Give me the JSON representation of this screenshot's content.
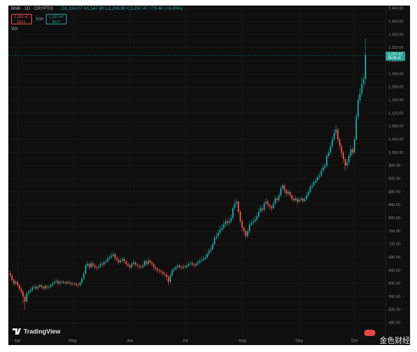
{
  "header": {
    "symbol": "BNB · 1D · CRYPTO",
    "ohlc": "O1,224.07 H1,347.60 L1,206.90 C1,297.47 +73.40 (+6.00%)",
    "sell_price": "1,297.47",
    "sell_label": "SELL",
    "spread": "0.00",
    "buy_price": "1,297.47",
    "buy_label": "BUY",
    "volume_label": "Vol"
  },
  "footer": {
    "brand": "TradingView",
    "watermark": "金色财经"
  },
  "chart_data": {
    "type": "candlestick",
    "up_color": "#26a69a",
    "down_color": "#ef5350",
    "last_price_label": "1,297.47",
    "countdown": "08:05:11",
    "xlim": [
      -1,
      204
    ],
    "xticks": [
      {
        "value": 4,
        "label": "Apr"
      },
      {
        "value": 34,
        "label": "May"
      },
      {
        "value": 65,
        "label": "Jun"
      },
      {
        "value": 95,
        "label": "Jul"
      },
      {
        "value": 126,
        "label": "Aug"
      },
      {
        "value": 157,
        "label": "Sep"
      },
      {
        "value": 187,
        "label": "Oct"
      }
    ],
    "ylim": [
      442,
      1449
    ],
    "yticks": [
      {
        "value": 1440,
        "label": "1,440.00"
      },
      {
        "value": 1400,
        "label": "1,400.00"
      },
      {
        "value": 1360,
        "label": "1,360.00"
      },
      {
        "value": 1320,
        "label": "1,320.00"
      },
      {
        "value": 1280,
        "label": "1,280.00"
      },
      {
        "value": 1240,
        "label": "1,240.00"
      },
      {
        "value": 1200,
        "label": "1,200.00"
      },
      {
        "value": 1160,
        "label": "1,160.00"
      },
      {
        "value": 1120,
        "label": "1,120.00"
      },
      {
        "value": 1080,
        "label": "1,080.00"
      },
      {
        "value": 1040,
        "label": "1,040.00"
      },
      {
        "value": 1000,
        "label": "1,000.00"
      },
      {
        "value": 960,
        "label": "960.00"
      },
      {
        "value": 920,
        "label": "920.00"
      },
      {
        "value": 880,
        "label": "880.00"
      },
      {
        "value": 840,
        "label": "840.00"
      },
      {
        "value": 800,
        "label": "800.00"
      },
      {
        "value": 760,
        "label": "760.00"
      },
      {
        "value": 720,
        "label": "720.00"
      },
      {
        "value": 680,
        "label": "680.00"
      },
      {
        "value": 640,
        "label": "640.00"
      },
      {
        "value": 600,
        "label": "600.00"
      },
      {
        "value": 560,
        "label": "560.00"
      },
      {
        "value": 520,
        "label": "520.00"
      },
      {
        "value": 480,
        "label": "480.00"
      }
    ],
    "candles": [
      [
        632,
        640,
        618,
        625
      ],
      [
        625,
        630,
        604,
        610
      ],
      [
        610,
        616,
        592,
        600
      ],
      [
        600,
        612,
        595,
        605
      ],
      [
        605,
        610,
        588,
        595
      ],
      [
        595,
        600,
        578,
        585
      ],
      [
        585,
        592,
        566,
        575
      ],
      [
        575,
        580,
        540,
        560
      ],
      [
        560,
        566,
        520,
        545
      ],
      [
        545,
        576,
        540,
        570
      ],
      [
        570,
        582,
        562,
        575
      ],
      [
        575,
        586,
        570,
        580
      ],
      [
        580,
        594,
        574,
        588
      ],
      [
        588,
        598,
        582,
        590
      ],
      [
        590,
        596,
        578,
        585
      ],
      [
        585,
        596,
        580,
        590
      ],
      [
        590,
        600,
        586,
        595
      ],
      [
        595,
        600,
        584,
        590
      ],
      [
        590,
        594,
        578,
        585
      ],
      [
        585,
        598,
        580,
        592
      ],
      [
        592,
        597,
        582,
        588
      ],
      [
        588,
        596,
        584,
        590
      ],
      [
        590,
        600,
        586,
        595
      ],
      [
        595,
        606,
        590,
        600
      ],
      [
        600,
        612,
        596,
        605
      ],
      [
        605,
        614,
        600,
        608
      ],
      [
        608,
        612,
        594,
        600
      ],
      [
        600,
        610,
        596,
        604
      ],
      [
        604,
        611,
        599,
        606
      ],
      [
        606,
        610,
        598,
        603
      ],
      [
        603,
        608,
        595,
        600
      ],
      [
        600,
        611,
        596,
        605
      ],
      [
        605,
        609,
        597,
        602
      ],
      [
        602,
        606,
        592,
        598
      ],
      [
        598,
        606,
        593,
        600
      ],
      [
        600,
        604,
        592,
        598
      ],
      [
        598,
        603,
        590,
        596
      ],
      [
        596,
        602,
        588,
        595
      ],
      [
        595,
        608,
        590,
        602
      ],
      [
        602,
        620,
        598,
        615
      ],
      [
        615,
        636,
        610,
        630
      ],
      [
        630,
        662,
        626,
        655
      ],
      [
        655,
        668,
        648,
        660
      ],
      [
        660,
        665,
        642,
        650
      ],
      [
        650,
        670,
        646,
        662
      ],
      [
        662,
        668,
        648,
        655
      ],
      [
        655,
        660,
        643,
        650
      ],
      [
        650,
        656,
        640,
        648
      ],
      [
        648,
        660,
        642,
        652
      ],
      [
        652,
        668,
        648,
        660
      ],
      [
        660,
        666,
        650,
        658
      ],
      [
        658,
        672,
        652,
        665
      ],
      [
        665,
        676,
        660,
        668
      ],
      [
        668,
        682,
        662,
        675
      ],
      [
        675,
        688,
        670,
        680
      ],
      [
        680,
        694,
        675,
        685
      ],
      [
        685,
        698,
        680,
        690
      ],
      [
        690,
        694,
        670,
        678
      ],
      [
        678,
        684,
        664,
        672
      ],
      [
        672,
        678,
        658,
        665
      ],
      [
        665,
        678,
        660,
        670
      ],
      [
        670,
        682,
        664,
        675
      ],
      [
        675,
        680,
        660,
        668
      ],
      [
        668,
        672,
        652,
        660
      ],
      [
        660,
        666,
        648,
        655
      ],
      [
        655,
        660,
        642,
        650
      ],
      [
        650,
        666,
        645,
        660
      ],
      [
        660,
        674,
        655,
        665
      ],
      [
        665,
        670,
        650,
        658
      ],
      [
        658,
        664,
        648,
        655
      ],
      [
        655,
        660,
        645,
        652
      ],
      [
        652,
        658,
        644,
        650
      ],
      [
        650,
        662,
        645,
        655
      ],
      [
        655,
        675,
        650,
        668
      ],
      [
        668,
        672,
        652,
        660
      ],
      [
        660,
        678,
        656,
        670
      ],
      [
        670,
        676,
        658,
        665
      ],
      [
        665,
        670,
        652,
        660
      ],
      [
        660,
        664,
        642,
        650
      ],
      [
        650,
        656,
        638,
        645
      ],
      [
        645,
        650,
        632,
        640
      ],
      [
        640,
        646,
        630,
        638
      ],
      [
        638,
        644,
        628,
        635
      ],
      [
        635,
        640,
        622,
        630
      ],
      [
        630,
        636,
        620,
        628
      ],
      [
        628,
        632,
        610,
        620
      ],
      [
        620,
        626,
        596,
        605
      ],
      [
        605,
        632,
        600,
        625
      ],
      [
        625,
        646,
        620,
        640
      ],
      [
        640,
        652,
        636,
        645
      ],
      [
        645,
        656,
        640,
        650
      ],
      [
        650,
        662,
        645,
        655
      ],
      [
        655,
        660,
        644,
        650
      ],
      [
        650,
        656,
        642,
        648
      ],
      [
        648,
        660,
        643,
        652
      ],
      [
        652,
        658,
        644,
        650
      ],
      [
        650,
        662,
        645,
        655
      ],
      [
        655,
        668,
        650,
        660
      ],
      [
        660,
        670,
        655,
        662
      ],
      [
        662,
        668,
        652,
        658
      ],
      [
        658,
        664,
        648,
        655
      ],
      [
        655,
        666,
        650,
        660
      ],
      [
        660,
        672,
        655,
        665
      ],
      [
        665,
        678,
        660,
        670
      ],
      [
        670,
        680,
        664,
        672
      ],
      [
        672,
        684,
        668,
        675
      ],
      [
        675,
        690,
        670,
        680
      ],
      [
        680,
        698,
        676,
        690
      ],
      [
        690,
        708,
        684,
        700
      ],
      [
        700,
        716,
        694,
        705
      ],
      [
        705,
        728,
        700,
        720
      ],
      [
        720,
        748,
        714,
        740
      ],
      [
        740,
        756,
        732,
        745
      ],
      [
        745,
        764,
        738,
        755
      ],
      [
        755,
        776,
        748,
        765
      ],
      [
        765,
        782,
        758,
        770
      ],
      [
        770,
        792,
        762,
        780
      ],
      [
        780,
        800,
        772,
        790
      ],
      [
        790,
        798,
        776,
        785
      ],
      [
        785,
        800,
        778,
        790
      ],
      [
        790,
        812,
        784,
        800
      ],
      [
        800,
        838,
        795,
        830
      ],
      [
        830,
        856,
        824,
        845
      ],
      [
        845,
        860,
        836,
        850
      ],
      [
        850,
        854,
        812,
        820
      ],
      [
        820,
        826,
        782,
        790
      ],
      [
        790,
        796,
        760,
        770
      ],
      [
        770,
        776,
        748,
        760
      ],
      [
        760,
        766,
        736,
        745
      ],
      [
        745,
        768,
        740,
        760
      ],
      [
        760,
        788,
        754,
        780
      ],
      [
        780,
        794,
        774,
        785
      ],
      [
        785,
        800,
        778,
        790
      ],
      [
        790,
        806,
        784,
        795
      ],
      [
        795,
        815,
        788,
        805
      ],
      [
        805,
        830,
        800,
        820
      ],
      [
        820,
        840,
        814,
        830
      ],
      [
        830,
        836,
        816,
        825
      ],
      [
        825,
        852,
        820,
        845
      ],
      [
        845,
        860,
        838,
        850
      ],
      [
        850,
        856,
        832,
        840
      ],
      [
        840,
        846,
        826,
        835
      ],
      [
        835,
        840,
        822,
        830
      ],
      [
        830,
        852,
        826,
        845
      ],
      [
        845,
        868,
        840,
        860
      ],
      [
        860,
        866,
        846,
        855
      ],
      [
        855,
        878,
        850,
        870
      ],
      [
        870,
        898,
        864,
        890
      ],
      [
        890,
        905,
        882,
        900
      ],
      [
        900,
        904,
        876,
        885
      ],
      [
        885,
        890,
        866,
        875
      ],
      [
        875,
        888,
        868,
        880
      ],
      [
        880,
        884,
        862,
        870
      ],
      [
        870,
        874,
        852,
        860
      ],
      [
        860,
        866,
        848,
        855
      ],
      [
        855,
        868,
        850,
        860
      ],
      [
        860,
        864,
        842,
        850
      ],
      [
        850,
        862,
        845,
        855
      ],
      [
        855,
        868,
        850,
        860
      ],
      [
        860,
        864,
        845,
        852
      ],
      [
        852,
        866,
        848,
        858
      ],
      [
        858,
        878,
        854,
        870
      ],
      [
        870,
        888,
        864,
        880
      ],
      [
        880,
        902,
        875,
        895
      ],
      [
        895,
        910,
        888,
        900
      ],
      [
        900,
        918,
        894,
        910
      ],
      [
        910,
        924,
        904,
        915
      ],
      [
        915,
        934,
        908,
        925
      ],
      [
        925,
        940,
        918,
        930
      ],
      [
        930,
        954,
        925,
        945
      ],
      [
        945,
        964,
        938,
        955
      ],
      [
        955,
        970,
        948,
        960
      ],
      [
        960,
        998,
        955,
        990
      ],
      [
        990,
        1010,
        982,
        1000
      ],
      [
        1000,
        1030,
        994,
        1020
      ],
      [
        1020,
        1050,
        1012,
        1040
      ],
      [
        1040,
        1072,
        1032,
        1060
      ],
      [
        1060,
        1085,
        1050,
        1070
      ],
      [
        1070,
        1076,
        1030,
        1040
      ],
      [
        1040,
        1046,
        1008,
        1020
      ],
      [
        1020,
        1028,
        988,
        1000
      ],
      [
        1000,
        1006,
        968,
        980
      ],
      [
        980,
        986,
        945,
        960
      ],
      [
        960,
        980,
        950,
        970
      ],
      [
        970,
        998,
        962,
        990
      ],
      [
        990,
        1020,
        984,
        1010
      ],
      [
        1010,
        1016,
        992,
        1000
      ],
      [
        1000,
        1050,
        996,
        1040
      ],
      [
        1040,
        1120,
        1035,
        1110
      ],
      [
        1110,
        1175,
        1100,
        1160
      ],
      [
        1160,
        1198,
        1150,
        1180
      ],
      [
        1180,
        1230,
        1170,
        1210
      ],
      [
        1210,
        1240,
        1195,
        1224.07
      ],
      [
        1224.07,
        1347.6,
        1206.9,
        1297.47
      ]
    ]
  }
}
